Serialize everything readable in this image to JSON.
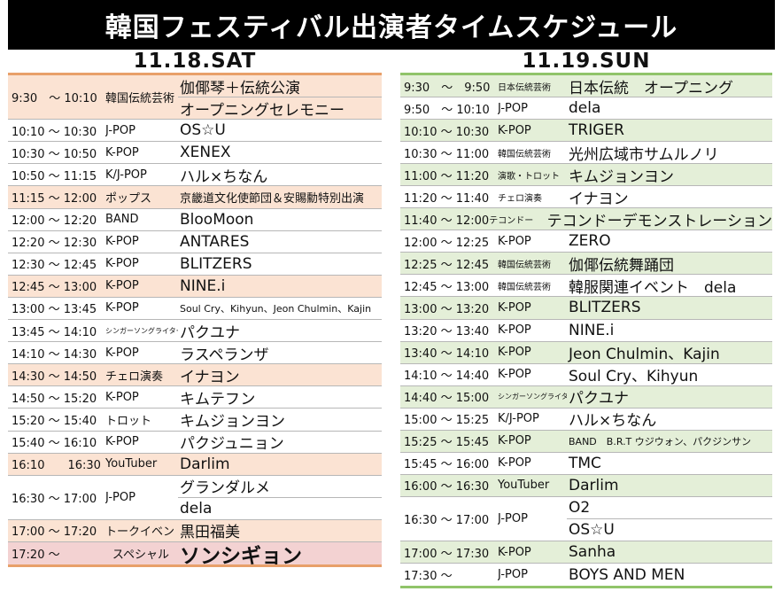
{
  "title": "韓国フェスティバル出演者タイムスケジュール",
  "days": [
    {
      "key": "sat",
      "label": "11.18.SAT",
      "rows": [
        {
          "time": "9:30　～ 10:10",
          "genre": "韓国伝統芸術",
          "performers": [
            "伽倻琴＋伝統公演",
            "オープニングセレモニー"
          ]
        },
        {
          "time": "10:10 ～ 10:30",
          "genre": "J-POP",
          "performers": [
            "OS☆U"
          ]
        },
        {
          "time": "10:30 ～ 10:50",
          "genre": "K-POP",
          "performers": [
            "XENEX"
          ]
        },
        {
          "time": "10:50 ～ 11:15",
          "genre": "K/J-POP",
          "performers": [
            "ハル×ちなん"
          ]
        },
        {
          "time": "11:15 ～ 12:00",
          "genre": "ポップス",
          "performers": [
            "京畿道文化使節団＆安賜勳特別出演"
          ]
        },
        {
          "time": "12:00 ～ 12:20",
          "genre": "BAND",
          "performers": [
            "BlooMoon"
          ]
        },
        {
          "time": "12:20 ～ 12:30",
          "genre": "K-POP",
          "performers": [
            "ANTARES"
          ]
        },
        {
          "time": "12:30 ～ 12:45",
          "genre": "K-POP",
          "performers": [
            "BLITZERS"
          ]
        },
        {
          "time": "12:45 ～ 13:00",
          "genre": "K-POP",
          "performers": [
            "NINE.i"
          ]
        },
        {
          "time": "13:00 ～ 13:45",
          "genre": "K-POP",
          "performers": [
            "Soul Cry、Kihyun、Jeon Chulmin、Kajin"
          ]
        },
        {
          "time": "13:45 ～ 14:10",
          "genre": "シンガーソングライター",
          "performers": [
            "パクユナ"
          ]
        },
        {
          "time": "14:10 ～ 14:30",
          "genre": "K-POP",
          "performers": [
            "ラスペランザ"
          ]
        },
        {
          "time": "14:30 ～ 14:50",
          "genre": "チェロ演奏",
          "performers": [
            "イナヨン"
          ]
        },
        {
          "time": "14:50 ～ 15:20",
          "genre": "K-POP",
          "performers": [
            "キムテフン"
          ]
        },
        {
          "time": "15:20 ～ 15:40",
          "genre": "トロット",
          "performers": [
            "キムジョンヨン"
          ]
        },
        {
          "time": "15:40 ～ 16:10",
          "genre": "K-POP",
          "performers": [
            "パクジュニョン"
          ]
        },
        {
          "time": "16:10　　16:30",
          "genre": "YouTuber",
          "performers": [
            "Darlim"
          ]
        },
        {
          "time": "16:30 ～ 17:00",
          "genre": "J-POP",
          "performers": [
            "グランダルメ",
            "dela"
          ]
        },
        {
          "time": "17:00 ～ 17:20",
          "genre": "トークイベント",
          "performers": [
            "黒田福美"
          ]
        },
        {
          "time": "17:20 ～",
          "genre": "スペシャル",
          "performers": [
            "ソンシギョン"
          ]
        }
      ]
    },
    {
      "key": "sun",
      "label": "11.19.SUN",
      "rows": [
        {
          "time": "9:30　～　9:50",
          "genre": "日本伝統芸術",
          "performers": [
            "日本伝統　オープニング"
          ]
        },
        {
          "time": "9:50　～ 10:10",
          "genre": "J-POP",
          "performers": [
            "dela"
          ]
        },
        {
          "time": "10:10 ～ 10:30",
          "genre": "K-POP",
          "performers": [
            "TRIGER"
          ]
        },
        {
          "time": "10:30 ～ 11:00",
          "genre": "韓国伝統芸術",
          "performers": [
            "光州広域市サムルノリ"
          ]
        },
        {
          "time": "11:00 ～ 11:20",
          "genre": "演歌・トロット",
          "performers": [
            "キムジョンヨン"
          ]
        },
        {
          "time": "11:20 ～ 11:40",
          "genre": "チェロ演奏",
          "performers": [
            "イナヨン"
          ]
        },
        {
          "time": "11:40 ～ 12:00",
          "genre": "テコンドー",
          "performers": [
            "テコンドーデモンストレーション"
          ]
        },
        {
          "time": "12:00 ～ 12:25",
          "genre": "K-POP",
          "performers": [
            "ZERO"
          ]
        },
        {
          "time": "12:25 ～ 12:45",
          "genre": "韓国伝統芸術",
          "performers": [
            "伽倻伝統舞踊団"
          ]
        },
        {
          "time": "12:45 ～ 13:00",
          "genre": "韓国伝統芸術",
          "performers": [
            "韓服関連イベント　dela"
          ]
        },
        {
          "time": "13:00 ～ 13:20",
          "genre": "K-POP",
          "performers": [
            "BLITZERS"
          ]
        },
        {
          "time": "13:20 ～ 13:40",
          "genre": "K-POP",
          "performers": [
            "NINE.i"
          ]
        },
        {
          "time": "13:40 ～ 14:10",
          "genre": "K-POP",
          "performers": [
            "Jeon Chulmin、Kajin"
          ]
        },
        {
          "time": "14:10 ～ 14:40",
          "genre": "K-POP",
          "performers": [
            "Soul Cry、Kihyun"
          ]
        },
        {
          "time": "14:40 ～ 15:00",
          "genre": "シンガーソングライター",
          "performers": [
            "パクユナ"
          ]
        },
        {
          "time": "15:00 ～ 15:25",
          "genre": "K/J-POP",
          "performers": [
            "ハル×ちなん"
          ]
        },
        {
          "time": "15:25 ～ 15:45",
          "genre": "K-POP",
          "performers": [
            "BAND　B.R.T ウジウォン、パクジンサン"
          ]
        },
        {
          "time": "15:45 ～ 16:00",
          "genre": "K-POP",
          "performers": [
            "TMC"
          ]
        },
        {
          "time": "16:00 ～ 16:30",
          "genre": "YouTuber",
          "performers": [
            "Darlim"
          ]
        },
        {
          "time": "16:30 ～ 17:00",
          "genre": "J-POP",
          "performers": [
            "O2",
            "OS☆U"
          ]
        },
        {
          "time": "17:00 ～ 17:30",
          "genre": "K-POP",
          "performers": [
            "Sanha"
          ]
        },
        {
          "time": "17:30 ～",
          "genre": "J-POP",
          "performers": [
            "BOYS AND MEN"
          ]
        }
      ]
    }
  ]
}
